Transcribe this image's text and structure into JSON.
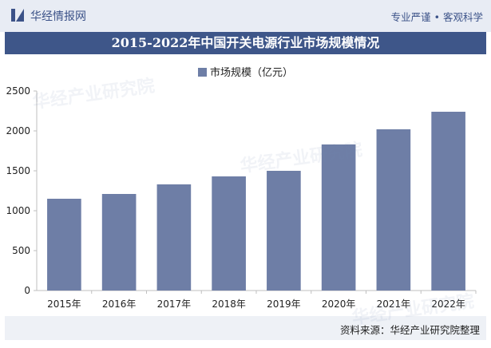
{
  "header": {
    "brand": "华经情报网",
    "tagline": "专业严谨 • 客观科学",
    "title": "2015-2022年中国开关电源行业市场规模情况"
  },
  "footer": {
    "source": "资料来源：华经产业研究院整理"
  },
  "watermark": "华经产业研究院",
  "colors": {
    "bar": "#6e7ea6",
    "title_bg": "#3e5689",
    "brand": "#3b5288"
  },
  "chart_data": {
    "type": "bar",
    "categories": [
      "2015年",
      "2016年",
      "2017年",
      "2018年",
      "2019年",
      "2020年",
      "2021年",
      "2022年"
    ],
    "series": [
      {
        "name": "市场规模（亿元）",
        "values": [
          1150,
          1210,
          1330,
          1430,
          1500,
          1830,
          2020,
          2240
        ]
      }
    ],
    "ylim": [
      0,
      2500
    ],
    "yticks": [
      0,
      500,
      1000,
      1500,
      2000,
      2500
    ],
    "grid": false,
    "legend": "top-center"
  }
}
